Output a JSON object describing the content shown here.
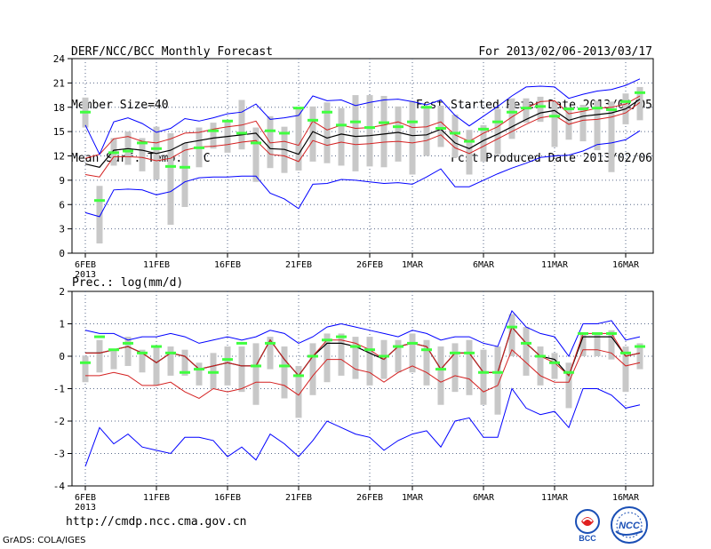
{
  "header": {
    "title": "DERF/NCC/BCC Monthly Forecast",
    "member_size": "Member Size=40",
    "variable": "Mean Surf. Temp.: °C",
    "forecast_period": "For 2013/02/06-2013/03/17",
    "started_refer": "Fcst Started Refer Date 2013/02/05",
    "produced": "Fcst Produced Date 2013/02/06"
  },
  "footer": {
    "url": "http://cmdp.ncc.cma.gov.cn",
    "grads": "GrADS: COLA/IGES",
    "logo_bcc": "BCC",
    "logo_ncc": "NCC"
  },
  "colors": {
    "envelope": "#0000ff",
    "lower_upper_band": "#d42020",
    "mean": "#000000",
    "box": "#c8c8c8",
    "median_marker": "#40ff40",
    "grid": "#5a6a8a"
  },
  "chart_data": [
    {
      "type": "line",
      "title": "Mean Surf. Temp.: °C",
      "ylabel": "",
      "ylim": [
        0,
        24
      ],
      "yticks": [
        0,
        3,
        6,
        9,
        12,
        15,
        18,
        21,
        24
      ],
      "grid": true,
      "x_tick_labels": [
        "6FEB",
        "11FEB",
        "16FEB",
        "21FEB",
        "26FEB",
        "1MAR",
        "6MAR",
        "11MAR",
        "16MAR"
      ],
      "x_tick_index": [
        0,
        5,
        10,
        15,
        20,
        23,
        28,
        33,
        38
      ],
      "x_year_label": "2013",
      "days": 40,
      "series": [
        {
          "name": "max",
          "values": [
            5.0,
            4.5,
            7.8,
            7.9,
            7.8,
            7.2,
            7.6,
            8.8,
            9.3,
            9.4,
            9.4,
            9.5,
            9.5,
            7.4,
            6.7,
            5.5,
            8.5,
            8.6,
            9.1,
            9.0,
            8.8,
            8.6,
            8.7,
            8.5,
            9.4,
            10.4,
            8.2,
            8.2,
            9.0,
            9.8,
            10.5,
            11.1,
            11.8,
            12.0,
            12.1,
            12.6,
            13.4,
            13.6,
            14.0,
            15.1
          ]
        },
        {
          "name": "p10",
          "values": [
            9.7,
            9.4,
            11.9,
            11.9,
            11.8,
            11.4,
            11.7,
            12.7,
            13.1,
            13.2,
            13.4,
            13.7,
            13.9,
            12.2,
            12.0,
            11.3,
            13.9,
            13.3,
            13.7,
            13.4,
            13.5,
            13.7,
            13.8,
            13.6,
            13.9,
            14.6,
            13.0,
            12.3,
            13.2,
            14.1,
            15.0,
            15.9,
            16.7,
            17.0,
            15.9,
            16.4,
            16.5,
            16.8,
            17.3,
            18.6
          ]
        },
        {
          "name": "mean",
          "values": [
            11.0,
            10.6,
            12.7,
            12.9,
            12.7,
            12.3,
            12.7,
            13.6,
            13.9,
            14.2,
            14.4,
            14.6,
            14.8,
            12.9,
            12.8,
            12.2,
            15.0,
            14.2,
            14.7,
            14.4,
            14.5,
            14.7,
            14.9,
            14.5,
            14.6,
            15.3,
            13.6,
            12.9,
            13.9,
            14.7,
            15.6,
            16.5,
            17.3,
            17.6,
            16.4,
            16.9,
            17.1,
            17.3,
            17.8,
            19.0
          ]
        },
        {
          "name": "p90",
          "values": [
            11.7,
            12.2,
            14.1,
            14.4,
            13.8,
            13.6,
            14.1,
            14.8,
            14.9,
            15.3,
            15.6,
            15.8,
            16.3,
            13.6,
            13.8,
            13.3,
            16.3,
            15.2,
            15.8,
            15.4,
            15.5,
            15.8,
            16.2,
            15.5,
            15.6,
            16.2,
            14.6,
            13.8,
            14.8,
            15.6,
            16.8,
            17.9,
            18.7,
            18.8,
            17.2,
            17.5,
            17.9,
            18.0,
            18.4,
            19.4
          ]
        },
        {
          "name": "min",
          "values": [
            15.8,
            12.2,
            16.2,
            16.7,
            16.0,
            14.9,
            15.4,
            16.6,
            16.3,
            16.7,
            17.2,
            17.4,
            18.4,
            16.5,
            16.7,
            17.0,
            19.4,
            18.8,
            18.9,
            18.2,
            18.6,
            18.9,
            19.0,
            18.7,
            18.3,
            18.9,
            17.0,
            15.7,
            16.9,
            18.1,
            19.4,
            20.5,
            20.6,
            20.5,
            19.1,
            19.6,
            20.0,
            20.2,
            20.7,
            21.5
          ]
        }
      ],
      "box_low": [
        15.5,
        1.2,
        10.8,
        10.9,
        10.1,
        9.1,
        3.5,
        5.7,
        10.6,
        12.9,
        12.4,
        12.8,
        8.8,
        10.5,
        9.9,
        10.2,
        11.3,
        11.1,
        10.8,
        10.1,
        10.7,
        10.6,
        11.3,
        9.7,
        12.0,
        13.1,
        11.8,
        9.7,
        11.3,
        12.2,
        14.1,
        16.1,
        16.2,
        13.1,
        14.0,
        13.8,
        12.7,
        10.0,
        15.9,
        16.4
      ],
      "box_high": [
        19.2,
        8.3,
        14.2,
        15.0,
        14.2,
        15.6,
        14.8,
        13.6,
        15.5,
        16.1,
        16.4,
        18.9,
        15.5,
        16.9,
        15.6,
        17.9,
        18.1,
        18.6,
        17.9,
        19.5,
        19.5,
        19.4,
        18.1,
        18.8,
        18.2,
        18.2,
        17.1,
        15.2,
        15.8,
        17.8,
        19.1,
        19.1,
        19.3,
        18.7,
        18.0,
        18.3,
        18.8,
        18.7,
        19.7,
        20.5
      ],
      "median": [
        17.4,
        6.5,
        12.4,
        12.6,
        13.6,
        12.9,
        10.7,
        10.6,
        13.0,
        15.1,
        16.3,
        14.8,
        13.6,
        15.1,
        14.8,
        17.9,
        16.4,
        17.4,
        15.8,
        16.2,
        15.5,
        16.1,
        15.6,
        16.2,
        18.0,
        15.4,
        14.8,
        13.8,
        15.3,
        16.2,
        17.4,
        17.9,
        18.1,
        16.9,
        17.8,
        17.8,
        17.9,
        17.7,
        18.7,
        19.8
      ]
    },
    {
      "type": "line",
      "title": "Prec.: log(mm/d)",
      "ylabel": "",
      "ylim": [
        -4,
        2
      ],
      "yticks": [
        -4,
        -3,
        -2,
        -1,
        0,
        1,
        2
      ],
      "grid": true,
      "x_tick_labels": [
        "6FEB",
        "11FEB",
        "16FEB",
        "21FEB",
        "26FEB",
        "1MAR",
        "6MAR",
        "11MAR",
        "16MAR"
      ],
      "x_tick_index": [
        0,
        5,
        10,
        15,
        20,
        23,
        28,
        33,
        38
      ],
      "x_year_label": "2013",
      "days": 40,
      "series": [
        {
          "name": "max",
          "values": [
            -3.4,
            -2.2,
            -2.7,
            -2.4,
            -2.8,
            -2.9,
            -3.0,
            -2.5,
            -2.5,
            -2.6,
            -3.1,
            -2.8,
            -3.2,
            -2.4,
            -2.7,
            -3.1,
            -2.6,
            -2.0,
            -2.2,
            -2.4,
            -2.5,
            -2.9,
            -2.6,
            -2.4,
            -2.3,
            -2.8,
            -2.0,
            -1.9,
            -2.5,
            -2.5,
            -1.0,
            -1.6,
            -1.8,
            -1.7,
            -2.2,
            -1.0,
            -1.0,
            -1.2,
            -1.6,
            -1.5
          ]
        },
        {
          "name": "p10",
          "values": [
            -0.6,
            -0.6,
            -0.5,
            -0.6,
            -0.9,
            -0.9,
            -0.8,
            -1.1,
            -1.3,
            -1.0,
            -1.1,
            -1.0,
            -0.8,
            -0.8,
            -0.9,
            -1.2,
            -0.6,
            -0.1,
            -0.1,
            -0.4,
            -0.5,
            -0.8,
            -0.5,
            -0.3,
            -0.5,
            -0.8,
            -0.6,
            -0.7,
            -1.1,
            -0.9,
            0.2,
            -0.2,
            -0.6,
            -0.8,
            -0.8,
            0.2,
            0.2,
            0.1,
            -0.3,
            -0.2
          ]
        },
        {
          "name": "mean",
          "values": [
            0.1,
            0.1,
            0.2,
            0.3,
            0.1,
            -0.2,
            0.1,
            0.0,
            -0.4,
            -0.3,
            -0.2,
            -0.3,
            -0.3,
            0.5,
            -0.1,
            -0.6,
            0.0,
            0.4,
            0.4,
            0.3,
            0.1,
            -0.1,
            0.3,
            0.4,
            0.3,
            -0.4,
            0.1,
            0.1,
            -0.5,
            -0.5,
            0.9,
            0.4,
            0.0,
            -0.1,
            -0.6,
            0.6,
            0.6,
            0.6,
            0.0,
            0.1
          ]
        },
        {
          "name": "p90",
          "values": [
            0.1,
            0.1,
            0.2,
            0.3,
            0.1,
            -0.2,
            0.1,
            0.0,
            -0.4,
            -0.3,
            -0.2,
            -0.3,
            -0.3,
            0.5,
            -0.1,
            -0.6,
            0.0,
            0.5,
            0.5,
            0.4,
            0.2,
            -0.1,
            0.3,
            0.4,
            0.3,
            -0.4,
            0.1,
            0.1,
            -0.5,
            -0.5,
            0.9,
            0.4,
            0.0,
            -0.2,
            -0.6,
            0.7,
            0.7,
            0.7,
            0.0,
            0.1
          ]
        },
        {
          "name": "min",
          "values": [
            0.8,
            0.7,
            0.7,
            0.5,
            0.6,
            0.6,
            0.7,
            0.6,
            0.4,
            0.5,
            0.6,
            0.5,
            0.6,
            0.8,
            0.7,
            0.4,
            0.6,
            0.9,
            1.0,
            0.9,
            0.8,
            0.7,
            0.6,
            0.8,
            0.7,
            0.5,
            0.6,
            0.6,
            0.4,
            0.3,
            1.4,
            0.9,
            0.7,
            0.6,
            0.0,
            1.0,
            1.0,
            1.1,
            0.5,
            0.6
          ]
        }
      ],
      "box_low": [
        -0.8,
        -0.5,
        -0.4,
        -0.3,
        -0.5,
        -0.9,
        -0.6,
        -0.6,
        -0.9,
        -1.0,
        -0.9,
        -1.1,
        -1.5,
        -0.4,
        -1.3,
        -1.9,
        -1.2,
        -0.8,
        -0.6,
        -0.7,
        -0.9,
        -0.7,
        -0.5,
        -0.5,
        -0.9,
        -1.5,
        -1.1,
        -1.2,
        -1.5,
        -1.8,
        0.0,
        -0.6,
        -0.9,
        -0.7,
        -1.6,
        0.0,
        0.0,
        -0.1,
        -1.1,
        -0.4
      ],
      "box_high": [
        0.0,
        0.5,
        0.2,
        0.6,
        0.2,
        0.3,
        0.3,
        0.2,
        -0.2,
        0.1,
        0.3,
        0.3,
        0.4,
        0.6,
        0.3,
        -0.3,
        0.4,
        0.7,
        0.7,
        0.6,
        0.6,
        0.5,
        0.5,
        0.7,
        0.5,
        0.3,
        0.4,
        0.5,
        0.2,
        0.3,
        1.3,
        0.9,
        0.3,
        0.1,
        -0.2,
        0.7,
        0.7,
        0.8,
        0.3,
        0.4
      ],
      "median": [
        -0.2,
        0.6,
        0.2,
        0.4,
        0.1,
        0.3,
        0.1,
        -0.5,
        -0.4,
        -0.5,
        -0.1,
        0.4,
        -0.3,
        0.4,
        -0.3,
        -0.6,
        0.0,
        0.5,
        0.6,
        0.3,
        0.2,
        0.0,
        0.3,
        0.4,
        0.2,
        -0.4,
        0.1,
        0.1,
        -0.5,
        -0.5,
        0.9,
        0.4,
        0.0,
        -0.2,
        -0.5,
        0.7,
        0.7,
        0.7,
        0.1,
        0.3
      ]
    }
  ]
}
